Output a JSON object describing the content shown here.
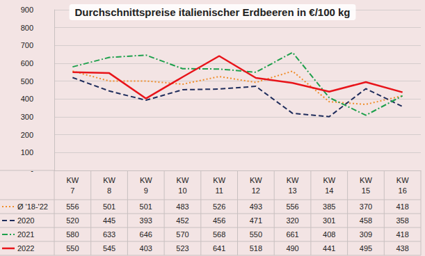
{
  "chart_data": {
    "type": "line",
    "title": "Durchschnittspreise italienischer Erdbeeren in €/100 kg",
    "categories": [
      "KW\n7",
      "KW\n8",
      "KW\n9",
      "KW\n10",
      "KW\n11",
      "KW\n12",
      "KW\n13",
      "KW\n14",
      "KW\n15",
      "KW\n16"
    ],
    "series": [
      {
        "name": "Ø '18-'22",
        "color": "#f08c28",
        "line_style": "dotted",
        "values": [
          556,
          501,
          501,
          483,
          526,
          493,
          556,
          385,
          370,
          418
        ]
      },
      {
        "name": "2020",
        "color": "#1f2d5c",
        "line_style": "dashed",
        "values": [
          520,
          445,
          393,
          452,
          456,
          471,
          320,
          301,
          458,
          358
        ]
      },
      {
        "name": "2021",
        "color": "#1ea04c",
        "line_style": "dashdot",
        "values": [
          580,
          633,
          646,
          570,
          568,
          550,
          661,
          408,
          309,
          418
        ]
      },
      {
        "name": "2022",
        "color": "#e8141a",
        "line_style": "solid",
        "values": [
          550,
          545,
          403,
          523,
          641,
          518,
          490,
          441,
          495,
          438
        ]
      }
    ],
    "ylim": [
      0,
      900
    ],
    "yticks": [
      {
        "value": 0,
        "label": "-"
      },
      100,
      200,
      300,
      400,
      500,
      600,
      700,
      800,
      900
    ],
    "grid": true
  }
}
